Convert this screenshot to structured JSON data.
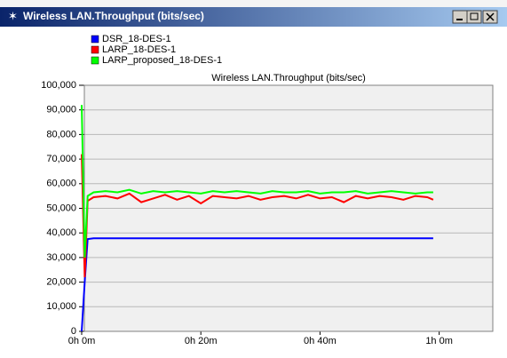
{
  "window_title": "Wireless LAN.Throughput (bits/sec)",
  "chart_data": {
    "type": "line",
    "title": "Wireless LAN.Throughput (bits/sec)",
    "x": [
      0,
      0.5,
      1,
      2,
      4,
      6,
      8,
      10,
      12,
      14,
      16,
      18,
      20,
      22,
      24,
      26,
      28,
      30,
      32,
      34,
      36,
      38,
      40,
      42,
      44,
      46,
      48,
      50,
      52,
      54,
      56,
      58,
      59
    ],
    "series": [
      {
        "name": "DSR_18-DES-1",
        "color": "#0000ff",
        "values": [
          0,
          20000,
          37500,
          37800,
          37800,
          37800,
          37800,
          37800,
          37800,
          37800,
          37800,
          37800,
          37800,
          37800,
          37800,
          37800,
          37800,
          37800,
          37800,
          37800,
          37800,
          37800,
          37800,
          37800,
          37800,
          37800,
          37800,
          37800,
          37800,
          37800,
          37800,
          37800,
          37800
        ]
      },
      {
        "name": "LARP_18-DES-1",
        "color": "#ff0000",
        "values": [
          72000,
          22000,
          53000,
          54500,
          55000,
          54000,
          56000,
          52500,
          54000,
          55500,
          53500,
          55000,
          52000,
          55000,
          54500,
          54000,
          55000,
          53500,
          54500,
          55000,
          54000,
          55500,
          54000,
          54500,
          52500,
          55000,
          54000,
          55000,
          54500,
          53500,
          55000,
          54500,
          53500
        ]
      },
      {
        "name": "LARP_proposed_18-DES-1",
        "color": "#00ff00",
        "values": [
          92000,
          30000,
          55000,
          56500,
          57000,
          56500,
          57500,
          56000,
          57000,
          56500,
          57000,
          56500,
          56000,
          57000,
          56500,
          57000,
          56500,
          56000,
          57000,
          56500,
          56500,
          57000,
          56000,
          56500,
          56500,
          57000,
          56000,
          56500,
          57000,
          56500,
          56000,
          56500,
          56500
        ]
      }
    ],
    "xlim": [
      0,
      69
    ],
    "xticks": [
      {
        "value": 0,
        "label": "0h 0m"
      },
      {
        "value": 20,
        "label": "0h 20m"
      },
      {
        "value": 40,
        "label": "0h 40m"
      },
      {
        "value": 60,
        "label": "1h 0m"
      }
    ],
    "ylim": [
      0,
      100000
    ],
    "yticks": [
      0,
      {
        "value": 10000,
        "label": "10,000"
      },
      {
        "value": 20000,
        "label": "20,000"
      },
      {
        "value": 30000,
        "label": "30,000"
      },
      {
        "value": 40000,
        "label": "40,000"
      },
      {
        "value": 50000,
        "label": "50,000"
      },
      {
        "value": 60000,
        "label": "60,000"
      },
      {
        "value": 70000,
        "label": "70,000"
      },
      {
        "value": 80000,
        "label": "80,000"
      },
      {
        "value": 90000,
        "label": "90,000"
      },
      {
        "value": 100000,
        "label": "100,000"
      }
    ],
    "grid": true
  }
}
